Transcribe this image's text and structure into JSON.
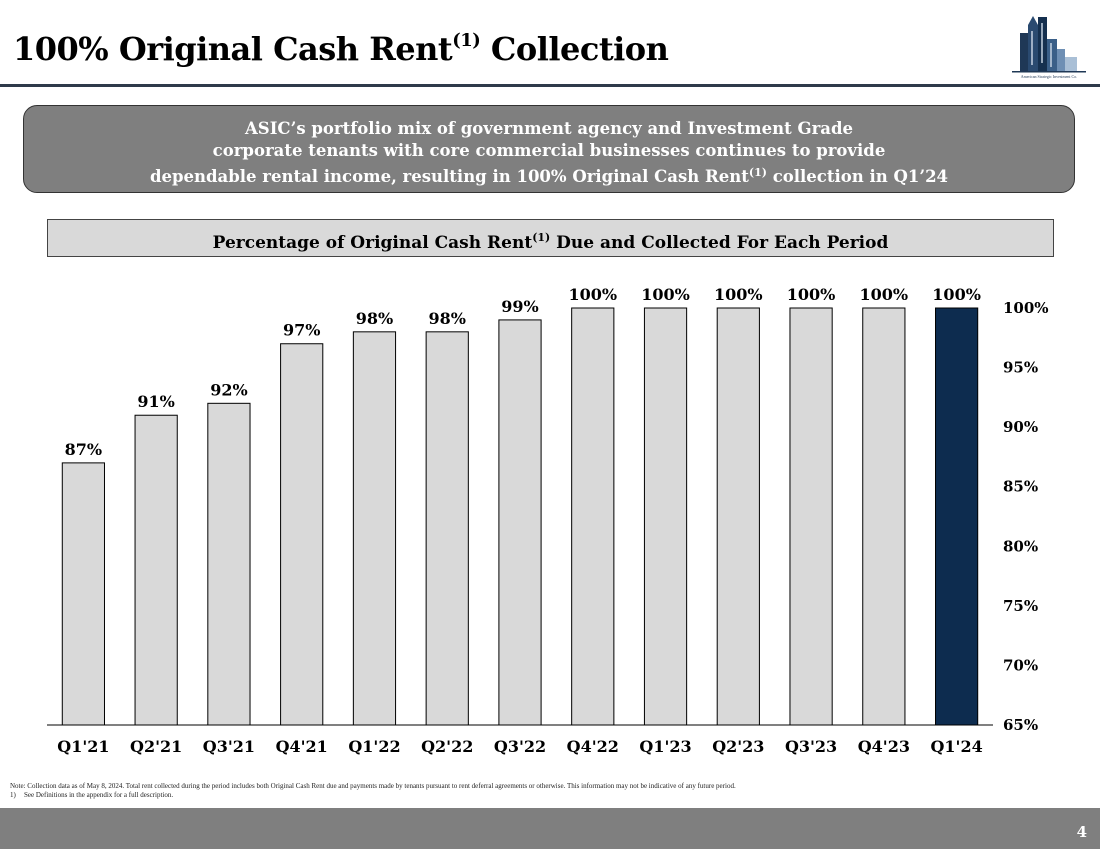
{
  "header": {
    "title_main": "100% Original Cash Rent",
    "title_sup": "(1)",
    "title_end": " Collection"
  },
  "logo": {
    "icon": "city-skyline-logo-icon",
    "caption": "American Strategic Investment Co."
  },
  "callout": {
    "line1": "ASIC’s portfolio mix of government agency and Investment Grade",
    "line2": "corporate tenants with core commercial businesses continues to provide",
    "line3_a": "dependable rental income, resulting in 100% Original Cash Rent",
    "line3_sup": "(1)",
    "line3_b": " collection in Q1’24"
  },
  "chart_title": {
    "main": "Percentage of Original Cash Rent",
    "sup": "(1)",
    "end": " Due and Collected For Each Period"
  },
  "chart_data": {
    "type": "bar",
    "title": "Percentage of Original Cash Rent(1) Due and Collected For Each Period",
    "categories": [
      "Q1'21",
      "Q2'21",
      "Q3'21",
      "Q4'21",
      "Q1'22",
      "Q2'22",
      "Q3'22",
      "Q4'22",
      "Q1'23",
      "Q2'23",
      "Q3'23",
      "Q4'23",
      "Q1'24"
    ],
    "values": [
      87,
      91,
      92,
      97,
      98,
      98,
      99,
      100,
      100,
      100,
      100,
      100,
      100
    ],
    "data_labels": [
      "87%",
      "91%",
      "92%",
      "97%",
      "98%",
      "98%",
      "99%",
      "100%",
      "100%",
      "100%",
      "100%",
      "100%",
      "100%"
    ],
    "ylim": [
      65,
      100
    ],
    "yticks": [
      65,
      70,
      75,
      80,
      85,
      90,
      95,
      100
    ],
    "ytick_labels": [
      "65%",
      "70%",
      "75%",
      "80%",
      "85%",
      "90%",
      "95%",
      "100%"
    ],
    "y_axis_side": "right",
    "grid": false,
    "bar_color": "#d9d9d9",
    "highlight_color": "#0d2c4f",
    "highlight_index": 12,
    "xlabel": "",
    "ylabel": ""
  },
  "notes": {
    "note": "Note: Collection data as of May 8, 2024. Total rent collected during the period includes both Original Cash Rent due and payments made by tenants pursuant to rent deferral agreements or otherwise. This information may not be indicative of any future period.",
    "fn_num": "1)",
    "fn_text": "See Definitions in the appendix for a full description."
  },
  "footer": {
    "page_number": "4"
  }
}
